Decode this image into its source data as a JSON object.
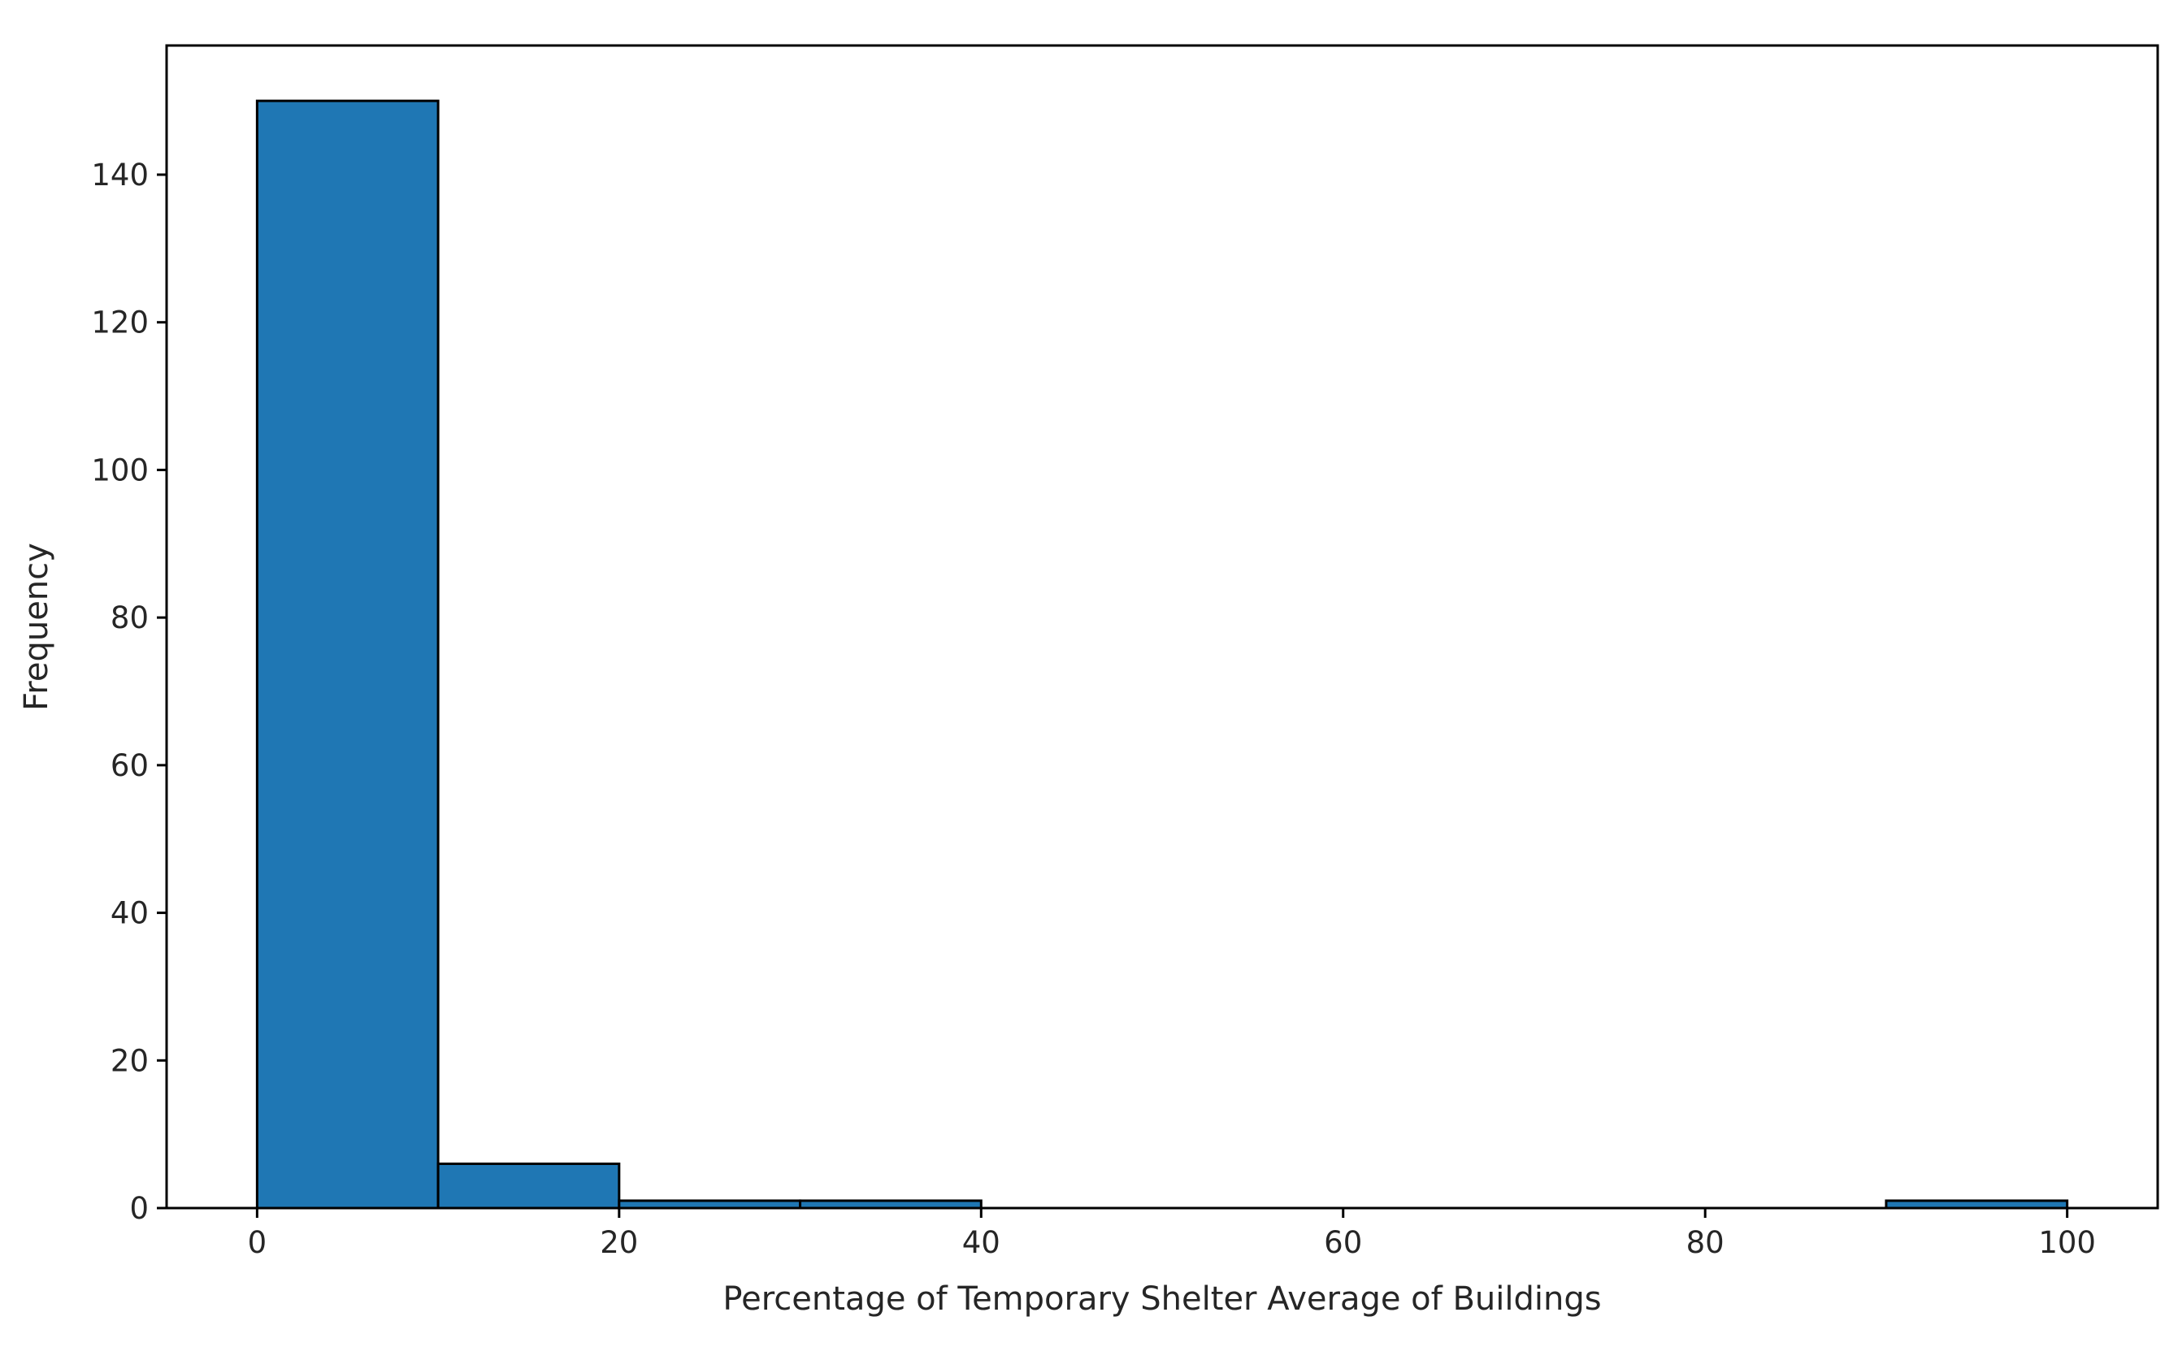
{
  "chart_data": {
    "type": "histogram",
    "xlabel": "Percentage of Temporary Shelter Average of Buildings",
    "ylabel": "Frequency",
    "xlim": [
      -5,
      105
    ],
    "ylim": [
      0,
      157.5
    ],
    "xticks": [
      0,
      20,
      40,
      60,
      80,
      100
    ],
    "yticks": [
      0,
      20,
      40,
      60,
      80,
      100,
      120,
      140
    ],
    "grid": false,
    "bins": [
      {
        "x0": 0,
        "x1": 10,
        "count": 150
      },
      {
        "x0": 10,
        "x1": 20,
        "count": 6
      },
      {
        "x0": 20,
        "x1": 30,
        "count": 1
      },
      {
        "x0": 30,
        "x1": 40,
        "count": 1
      },
      {
        "x0": 40,
        "x1": 50,
        "count": 0
      },
      {
        "x0": 50,
        "x1": 60,
        "count": 0
      },
      {
        "x0": 60,
        "x1": 70,
        "count": 0
      },
      {
        "x0": 70,
        "x1": 80,
        "count": 0
      },
      {
        "x0": 80,
        "x1": 90,
        "count": 0
      },
      {
        "x0": 90,
        "x1": 100,
        "count": 1
      }
    ],
    "colors": {
      "bar_fill": "#1f77b4",
      "bar_edge": "#000000",
      "axis": "#000000"
    }
  }
}
